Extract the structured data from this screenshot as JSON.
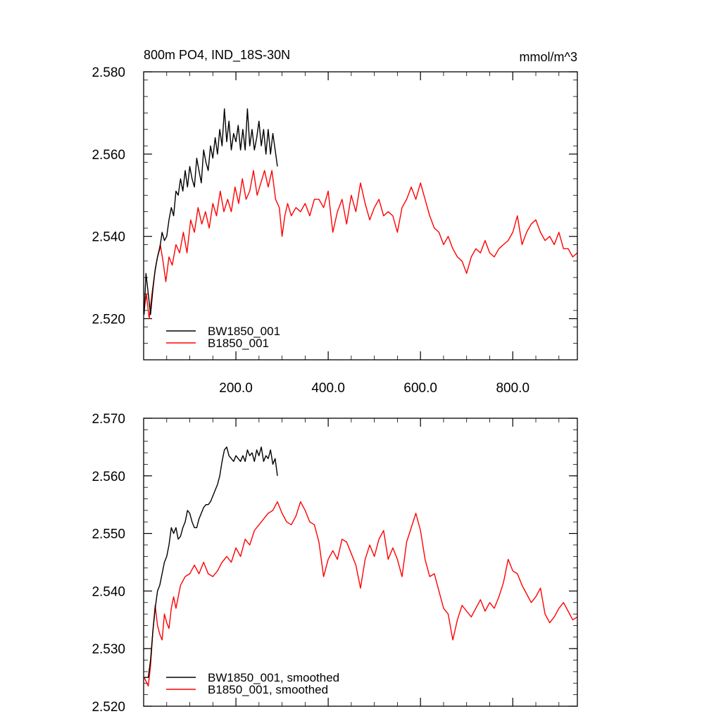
{
  "chart_data": [
    {
      "type": "line",
      "title": "800m PO4, IND_18S-30N",
      "units": "mmol/m^3",
      "xlim": [
        0,
        940
      ],
      "ylim": [
        2.51,
        2.58
      ],
      "x_ticks": [
        "200.0",
        "400.0",
        "600.0",
        "800.0"
      ],
      "y_ticks": [
        "2.520",
        "2.540",
        "2.560",
        "2.580"
      ],
      "legend_position": "bottom-left",
      "series": [
        {
          "name": "BW1850_001",
          "color": "#000000",
          "x": [
            1,
            5,
            10,
            15,
            20,
            25,
            30,
            35,
            40,
            45,
            50,
            55,
            60,
            65,
            70,
            75,
            80,
            85,
            90,
            95,
            100,
            105,
            110,
            115,
            120,
            125,
            130,
            135,
            140,
            145,
            150,
            155,
            160,
            165,
            170,
            175,
            180,
            185,
            190,
            195,
            200,
            205,
            210,
            215,
            220,
            225,
            230,
            235,
            240,
            245,
            250,
            255,
            260,
            265,
            270,
            275,
            280,
            285,
            290
          ],
          "values": [
            2.521,
            2.531,
            2.526,
            2.521,
            2.527,
            2.532,
            2.535,
            2.537,
            2.541,
            2.539,
            2.54,
            2.544,
            2.547,
            2.545,
            2.551,
            2.55,
            2.554,
            2.551,
            2.556,
            2.552,
            2.557,
            2.554,
            2.552,
            2.559,
            2.556,
            2.553,
            2.561,
            2.558,
            2.556,
            2.562,
            2.559,
            2.564,
            2.56,
            2.566,
            2.562,
            2.571,
            2.563,
            2.568,
            2.561,
            2.565,
            2.563,
            2.567,
            2.561,
            2.566,
            2.561,
            2.571,
            2.562,
            2.566,
            2.561,
            2.564,
            2.568,
            2.562,
            2.566,
            2.56,
            2.566,
            2.56,
            2.565,
            2.561,
            2.557
          ]
        },
        {
          "name": "B1850_001",
          "color": "#ff0000",
          "x": [
            1,
            6,
            12,
            18,
            24,
            30,
            36,
            42,
            48,
            55,
            62,
            70,
            78,
            86,
            94,
            102,
            110,
            118,
            126,
            134,
            142,
            150,
            158,
            166,
            174,
            182,
            190,
            198,
            206,
            214,
            222,
            230,
            238,
            246,
            254,
            262,
            270,
            278,
            286,
            294,
            300,
            306,
            312,
            320,
            330,
            340,
            350,
            360,
            370,
            380,
            390,
            400,
            410,
            420,
            430,
            440,
            450,
            460,
            470,
            480,
            490,
            500,
            510,
            520,
            530,
            540,
            550,
            560,
            570,
            580,
            590,
            600,
            610,
            620,
            630,
            640,
            650,
            660,
            670,
            680,
            690,
            700,
            710,
            720,
            730,
            740,
            750,
            760,
            770,
            780,
            790,
            800,
            810,
            820,
            830,
            840,
            850,
            860,
            870,
            880,
            890,
            900,
            910,
            920,
            930,
            940
          ],
          "values": [
            2.522,
            2.526,
            2.52,
            2.526,
            2.531,
            2.535,
            2.538,
            2.534,
            2.529,
            2.535,
            2.533,
            2.538,
            2.536,
            2.541,
            2.536,
            2.544,
            2.541,
            2.547,
            2.543,
            2.546,
            2.542,
            2.548,
            2.545,
            2.551,
            2.546,
            2.549,
            2.546,
            2.552,
            2.548,
            2.554,
            2.549,
            2.551,
            2.556,
            2.55,
            2.553,
            2.556,
            2.552,
            2.556,
            2.549,
            2.547,
            2.54,
            2.545,
            2.548,
            2.545,
            2.547,
            2.546,
            2.548,
            2.545,
            2.549,
            2.549,
            2.547,
            2.551,
            2.541,
            2.546,
            2.549,
            2.543,
            2.55,
            2.546,
            2.553,
            2.548,
            2.544,
            2.547,
            2.549,
            2.545,
            2.546,
            2.545,
            2.541,
            2.547,
            2.549,
            2.552,
            2.549,
            2.553,
            2.549,
            2.545,
            2.542,
            2.541,
            2.538,
            2.54,
            2.537,
            2.535,
            2.534,
            2.531,
            2.535,
            2.537,
            2.536,
            2.539,
            2.536,
            2.535,
            2.537,
            2.538,
            2.539,
            2.541,
            2.545,
            2.538,
            2.541,
            2.543,
            2.544,
            2.541,
            2.539,
            2.54,
            2.538,
            2.541,
            2.537,
            2.537,
            2.535,
            2.536
          ]
        }
      ]
    },
    {
      "type": "line",
      "xlim": [
        0,
        940
      ],
      "ylim": [
        2.52,
        2.57
      ],
      "y_ticks": [
        "2.520",
        "2.530",
        "2.540",
        "2.550",
        "2.560",
        "2.570"
      ],
      "legend_position": "bottom-left",
      "series": [
        {
          "name": "BW1850_001, smoothed",
          "color": "#000000",
          "x": [
            1,
            10,
            15,
            20,
            25,
            30,
            35,
            40,
            45,
            50,
            55,
            60,
            65,
            70,
            75,
            80,
            85,
            90,
            95,
            100,
            105,
            110,
            115,
            120,
            125,
            130,
            135,
            140,
            145,
            150,
            155,
            160,
            165,
            170,
            175,
            180,
            185,
            190,
            195,
            200,
            205,
            210,
            215,
            220,
            225,
            230,
            235,
            240,
            245,
            250,
            255,
            260,
            265,
            270,
            275,
            280,
            285,
            290
          ],
          "values": [
            2.525,
            2.525,
            2.528,
            2.533,
            2.537,
            2.54,
            2.541,
            2.543,
            2.545,
            2.546,
            2.548,
            2.551,
            2.55,
            2.551,
            2.549,
            2.5495,
            2.551,
            2.552,
            2.554,
            2.5535,
            2.552,
            2.551,
            2.551,
            2.5525,
            2.5535,
            2.5545,
            2.555,
            2.555,
            2.5555,
            2.5565,
            2.5575,
            2.5585,
            2.56,
            2.5625,
            2.5645,
            2.565,
            2.5635,
            2.563,
            2.5625,
            2.5635,
            2.563,
            2.5625,
            2.5635,
            2.5625,
            2.5645,
            2.5635,
            2.564,
            2.5625,
            2.5645,
            2.5635,
            2.565,
            2.5625,
            2.5635,
            2.563,
            2.5645,
            2.562,
            2.563,
            2.56
          ]
        },
        {
          "name": "B1850_001, smoothed",
          "color": "#ff0000",
          "x": [
            1,
            10,
            15,
            20,
            25,
            30,
            35,
            40,
            45,
            50,
            55,
            60,
            65,
            70,
            80,
            90,
            100,
            110,
            120,
            130,
            140,
            150,
            160,
            170,
            180,
            190,
            200,
            210,
            220,
            230,
            240,
            250,
            260,
            270,
            280,
            290,
            300,
            310,
            320,
            330,
            340,
            350,
            360,
            370,
            380,
            390,
            400,
            410,
            420,
            430,
            440,
            450,
            460,
            470,
            480,
            490,
            500,
            510,
            520,
            530,
            540,
            550,
            560,
            570,
            580,
            590,
            600,
            610,
            620,
            630,
            640,
            650,
            660,
            670,
            680,
            690,
            700,
            710,
            720,
            730,
            740,
            750,
            760,
            770,
            780,
            790,
            800,
            810,
            820,
            830,
            840,
            850,
            860,
            870,
            880,
            890,
            900,
            910,
            920,
            930,
            940
          ],
          "values": [
            2.525,
            2.5235,
            2.527,
            2.533,
            2.5375,
            2.534,
            2.5325,
            2.5315,
            2.536,
            2.5345,
            2.5335,
            2.537,
            2.539,
            2.537,
            2.541,
            2.5425,
            2.543,
            2.5445,
            2.543,
            2.545,
            2.543,
            2.5425,
            2.5435,
            2.545,
            2.546,
            2.545,
            2.5475,
            2.546,
            2.549,
            2.548,
            2.5505,
            2.5515,
            2.5525,
            2.5535,
            2.554,
            2.5555,
            2.5535,
            2.552,
            2.5515,
            2.553,
            2.5555,
            2.554,
            2.552,
            2.5515,
            2.5485,
            2.5425,
            2.5455,
            2.547,
            2.5455,
            2.549,
            2.5485,
            2.5465,
            2.5445,
            2.5405,
            2.5455,
            2.548,
            2.546,
            2.549,
            2.5505,
            2.5455,
            2.5475,
            2.5455,
            2.5425,
            2.5485,
            2.551,
            2.5535,
            2.5505,
            2.5455,
            2.5425,
            2.543,
            2.54,
            2.537,
            2.536,
            2.5315,
            2.535,
            2.5375,
            2.5365,
            2.5355,
            2.537,
            2.5385,
            2.5365,
            2.538,
            2.537,
            2.539,
            2.5415,
            2.5455,
            2.5435,
            2.543,
            2.541,
            2.5395,
            2.538,
            2.539,
            2.5405,
            2.536,
            2.5345,
            2.5355,
            2.537,
            2.538,
            2.5365,
            2.535,
            2.5355
          ]
        }
      ]
    }
  ]
}
